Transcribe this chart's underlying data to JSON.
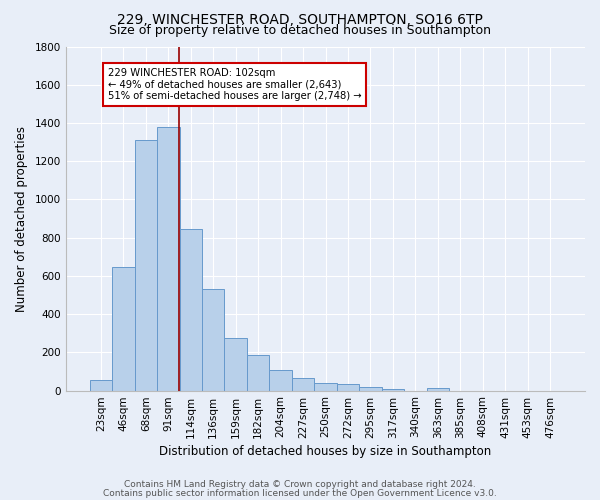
{
  "title1": "229, WINCHESTER ROAD, SOUTHAMPTON, SO16 6TP",
  "title2": "Size of property relative to detached houses in Southampton",
  "xlabel": "Distribution of detached houses by size in Southampton",
  "ylabel": "Number of detached properties",
  "categories": [
    "23sqm",
    "46sqm",
    "68sqm",
    "91sqm",
    "114sqm",
    "136sqm",
    "159sqm",
    "182sqm",
    "204sqm",
    "227sqm",
    "250sqm",
    "272sqm",
    "295sqm",
    "317sqm",
    "340sqm",
    "363sqm",
    "385sqm",
    "408sqm",
    "431sqm",
    "453sqm",
    "476sqm"
  ],
  "values": [
    55,
    645,
    1310,
    1380,
    845,
    530,
    275,
    185,
    105,
    65,
    38,
    32,
    18,
    7,
    0,
    12,
    0,
    0,
    0,
    0,
    0
  ],
  "bar_color": "#b8d0ea",
  "bar_edge_color": "#6699cc",
  "vline_color": "#990000",
  "annotation_text": "229 WINCHESTER ROAD: 102sqm\n← 49% of detached houses are smaller (2,643)\n51% of semi-detached houses are larger (2,748) →",
  "annotation_box_color": "#ffffff",
  "annotation_box_edge": "#cc0000",
  "ylim": [
    0,
    1800
  ],
  "yticks": [
    0,
    200,
    400,
    600,
    800,
    1000,
    1200,
    1400,
    1600,
    1800
  ],
  "footer1": "Contains HM Land Registry data © Crown copyright and database right 2024.",
  "footer2": "Contains public sector information licensed under the Open Government Licence v3.0.",
  "bg_color": "#e8eef8",
  "plot_bg_color": "#e8eef8",
  "title1_fontsize": 10,
  "title2_fontsize": 9,
  "axis_label_fontsize": 8.5,
  "tick_fontsize": 7.5,
  "footer_fontsize": 6.5,
  "vline_pos": 3.48
}
